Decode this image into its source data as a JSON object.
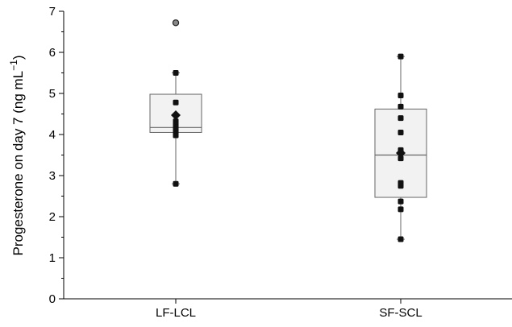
{
  "chart_data": {
    "type": "box",
    "ylabel": "Progesterone on day 7 (ng mL",
    "ylabel_unit_exp": "−1",
    "ylabel_close": ")",
    "ylim": [
      0,
      7
    ],
    "yticks": [
      0,
      1,
      2,
      3,
      4,
      5,
      6,
      7
    ],
    "categories": [
      "LF-LCL",
      "SF-SCL"
    ],
    "groups": [
      {
        "name": "LF-LCL",
        "q1": 4.05,
        "median": 4.17,
        "q3": 4.98,
        "whisker_low": 2.8,
        "whisker_high": 5.5,
        "mean": 4.47,
        "points": [
          2.8,
          3.98,
          4.05,
          4.1,
          4.15,
          4.2,
          4.25,
          4.32,
          4.78,
          5.5
        ],
        "outliers": [
          6.72
        ]
      },
      {
        "name": "SF-SCL",
        "q1": 2.47,
        "median": 3.5,
        "q3": 4.62,
        "whisker_low": 1.45,
        "whisker_high": 5.9,
        "mean": 3.55,
        "points": [
          1.45,
          2.18,
          2.37,
          2.75,
          2.82,
          3.42,
          3.62,
          4.05,
          4.4,
          4.68,
          4.95,
          5.9
        ],
        "outliers": []
      }
    ],
    "grid": false,
    "legend": "none"
  }
}
